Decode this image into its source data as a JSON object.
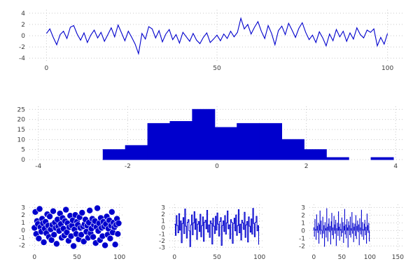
{
  "figure": {
    "background": "#ffffff",
    "accent": "#0000cd",
    "grid_color": "#c9c9c9",
    "tick_color": "#3c3c3c"
  },
  "chart_data": [
    {
      "id": "line",
      "type": "line",
      "title": "",
      "xlim": [
        -5,
        105
      ],
      "ylim": [
        -4.6,
        4.6
      ],
      "xticks": [
        0,
        50,
        100
      ],
      "yticks": [
        -4,
        -2,
        0,
        2,
        4
      ],
      "x_step": 1,
      "values": [
        0.4,
        1.2,
        -0.3,
        -1.6,
        0.2,
        0.8,
        -0.5,
        1.5,
        1.8,
        0.3,
        -0.8,
        0.5,
        -1.2,
        0.1,
        1.0,
        -0.4,
        0.6,
        -1.0,
        0.2,
        1.4,
        -0.2,
        1.9,
        0.5,
        -0.9,
        0.8,
        -0.3,
        -1.5,
        -3.2,
        0.4,
        -0.6,
        1.6,
        1.2,
        -0.4,
        0.9,
        -1.1,
        0.3,
        1.1,
        -0.7,
        0.2,
        -1.3,
        0.6,
        -0.2,
        -1.0,
        0.4,
        -0.8,
        -1.4,
        -0.3,
        0.5,
        -1.2,
        -0.6,
        0.1,
        -0.9,
        0.3,
        -0.5,
        0.8,
        -0.2,
        0.6,
        3.1,
        1.2,
        2.0,
        0.3,
        1.5,
        2.5,
        0.8,
        -0.5,
        1.8,
        0.4,
        -1.6,
        0.9,
        1.7,
        0.2,
        2.2,
        1.0,
        -0.3,
        1.3,
        2.3,
        0.6,
        -0.7,
        0.1,
        -1.2,
        0.7,
        -0.4,
        -1.8,
        0.3,
        -0.9,
        1.1,
        -0.2,
        0.8,
        -1.0,
        0.5,
        -0.6,
        1.4,
        0.2,
        -0.4,
        1.0,
        0.6,
        1.2,
        -1.8,
        -0.3,
        -1.5,
        0.4
      ]
    },
    {
      "id": "histogram",
      "type": "bar",
      "title": "",
      "xlim": [
        -4.2,
        4.2
      ],
      "ylim": [
        0,
        26.5
      ],
      "xticks": [
        -4,
        -2,
        0,
        2,
        4
      ],
      "yticks": [
        0,
        5,
        10,
        15,
        20,
        25
      ],
      "bin_start": -2.55,
      "bin_width": 0.5,
      "counts": [
        5,
        7,
        18,
        19,
        25,
        16,
        18,
        18,
        10,
        5,
        1,
        0,
        1
      ]
    },
    {
      "id": "scatter",
      "type": "scatter",
      "title": "",
      "xlim": [
        -6,
        106
      ],
      "ylim": [
        -2.7,
        3.4
      ],
      "xticks": [
        0,
        50,
        100
      ],
      "yticks": [
        -2,
        -1,
        0,
        1,
        2,
        3
      ],
      "x_step": 1,
      "values": [
        0.3,
        2.4,
        -0.5,
        1.2,
        0.8,
        -1.1,
        2.8,
        0.4,
        -0.2,
        1.5,
        0.9,
        -1.6,
        0.2,
        1.1,
        -0.4,
        2.1,
        0.6,
        -0.9,
        1.8,
        0.1,
        -1.3,
        0.7,
        2.5,
        -0.6,
        1.0,
        0.3,
        -1.8,
        1.4,
        0.5,
        -0.1,
        2.2,
        0.8,
        -1.0,
        1.6,
        0.2,
        -0.7,
        1.2,
        2.7,
        -0.3,
        0.9,
        -1.4,
        0.4,
        1.9,
        -0.8,
        0.6,
        1.3,
        -2.1,
        0.1,
        2.0,
        -0.5,
        1.1,
        0.7,
        -1.2,
        1.7,
        0.3,
        -0.6,
        2.3,
        0.5,
        -1.5,
        0.8,
        1.4,
        -0.2,
        0.6,
        -1.0,
        1.0,
        2.6,
        -0.4,
        0.2,
        1.5,
        -0.9,
        0.7,
        1.2,
        -1.7,
        0.4,
        2.9,
        -0.1,
        0.9,
        -1.3,
        1.6,
        0.3,
        -0.8,
        1.1,
        0.5,
        -2.0,
        0.8,
        1.8,
        -0.6,
        0.2,
        1.3,
        -1.1,
        0.6,
        2.4,
        -0.3,
        1.0,
        0.4,
        -1.9,
        0.7,
        1.5,
        -0.5,
        0.9
      ]
    },
    {
      "id": "step",
      "type": "step",
      "title": "",
      "xlim": [
        -6,
        106
      ],
      "ylim": [
        -3.5,
        3.5
      ],
      "xticks": [
        0,
        50,
        100
      ],
      "yticks": [
        -3,
        -2,
        -1,
        0,
        1,
        2,
        3
      ],
      "x_step": 1,
      "values": [
        0.5,
        -1.2,
        1.8,
        0.3,
        -0.8,
        2.1,
        -0.4,
        1.0,
        -2.3,
        0.6,
        1.5,
        -0.9,
        2.8,
        0.2,
        -1.6,
        0.8,
        1.2,
        -0.5,
        -2.9,
        0.4,
        1.9,
        -1.1,
        0.7,
        2.4,
        -0.3,
        1.3,
        -1.8,
        0.5,
        0.9,
        -0.6,
        2.0,
        -1.4,
        0.3,
        1.6,
        -2.1,
        0.8,
        1.1,
        -0.2,
        2.6,
        -0.7,
        0.4,
        -1.5,
        1.0,
        0.6,
        -2.5,
        1.4,
        0.2,
        -0.9,
        1.7,
        -0.4,
        2.2,
        0.5,
        -1.3,
        0.9,
        1.5,
        -2.7,
        0.3,
        1.0,
        -0.6,
        1.8,
        -1.0,
        0.7,
        2.5,
        -0.2,
        0.4,
        -1.7,
        1.2,
        0.8,
        -2.4,
        0.6,
        1.4,
        -0.5,
        1.9,
        -1.2,
        0.3,
        2.7,
        -0.8,
        0.5,
        -1.9,
        1.1,
        0.7,
        -0.3,
        2.3,
        -1.5,
        0.4,
        0.9,
        -2.2,
        1.6,
        0.2,
        -0.7,
        1.3,
        -1.0,
        2.9,
        0.6,
        -1.4,
        0.8,
        1.7,
        -0.5,
        0.3,
        -2.6
      ]
    },
    {
      "id": "stem",
      "type": "stem",
      "title": "",
      "xlim": [
        -8,
        162
      ],
      "ylim": [
        -2.6,
        3.4
      ],
      "xticks": [
        0,
        50,
        100,
        150
      ],
      "yticks": [
        -2,
        -1,
        0,
        1,
        2,
        3
      ],
      "x_step": 1,
      "values": [
        0.4,
        -0.8,
        1.5,
        0.2,
        -1.2,
        2.1,
        0.6,
        -0.3,
        1.0,
        -1.7,
        0.8,
        2.6,
        -0.5,
        1.3,
        0.1,
        -1.0,
        1.8,
        -0.4,
        0.7,
        -2.1,
        1.1,
        0.3,
        -0.9,
        2.9,
        0.5,
        -1.4,
        0.9,
        1.6,
        -0.2,
        0.6,
        -1.8,
        1.2,
        2.3,
        -0.6,
        0.4,
        -1.1,
        1.9,
        0.8,
        -0.4,
        1.4,
        -2.0,
        0.3,
        1.0,
        -0.7,
        2.5,
        0.5,
        -1.3,
        0.9,
        0.2,
        -0.8,
        1.7,
        -0.3,
        1.1,
        -1.6,
        0.6,
        2.8,
        -0.5,
        0.8,
        -1.0,
        1.5,
        0.4,
        -2.2,
        1.2,
        0.7,
        -0.6,
        1.8,
        -0.9,
        0.3,
        2.4,
        -0.4,
        1.0,
        -1.5,
        0.5,
        0.9,
        -0.7,
        2.0,
        -1.1,
        0.6,
        1.3,
        -0.2,
        0.8,
        -1.9,
        1.6,
        0.4,
        -0.5,
        2.7,
        -0.8,
        1.1,
        0.2,
        -1.2,
        0.9,
        1.4,
        -0.6,
        0.5,
        -1.7,
        2.2,
        0.7,
        -0.3,
        1.0,
        -1.4
      ]
    }
  ]
}
